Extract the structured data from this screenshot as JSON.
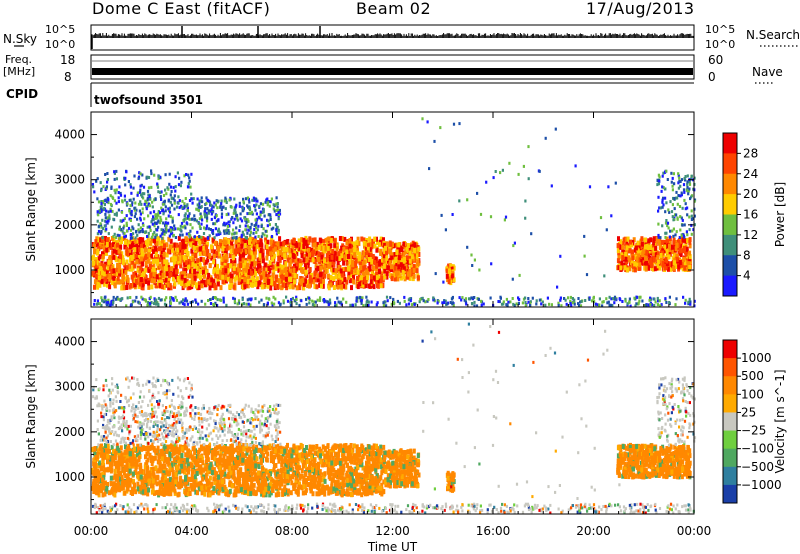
{
  "header": {
    "title": "Dome C East (fitACF)",
    "beam": "Beam 02",
    "date": "17/Aug/2013"
  },
  "status_panels": {
    "nsky_label": "N.Sky",
    "nsearch_label": "N.Search",
    "sky_ticks": [
      "10^5",
      "10^0"
    ],
    "search_ticks": [
      "10^5",
      "10^0"
    ],
    "freq_label_top": "Freq.",
    "freq_label_unit": "[MHz]",
    "freq_ticks": [
      "18",
      "8"
    ],
    "nave_label": "Nave",
    "nave_ticks": [
      "60",
      "0"
    ],
    "cpid_label": "CPID",
    "cpid_value": "twofsound 3501"
  },
  "colors": {
    "power_scale": [
      "#1a1aff",
      "#1d4fa8",
      "#3f8f7a",
      "#6fbf3f",
      "#ffcc00",
      "#ff8800",
      "#ff4400",
      "#ee0000"
    ],
    "velocity_scale": [
      "#1a3fa8",
      "#2f7f9f",
      "#4fa860",
      "#6fcf3f",
      "#c8c8c0",
      "#ffaa00",
      "#ff8800",
      "#ff5500",
      "#ee0000"
    ]
  },
  "chart_data": [
    {
      "type": "heatmap",
      "name": "power",
      "ylabel": "Slant Range [km]",
      "xlabel": "Time UT",
      "x_ticks": [
        "00:00",
        "04:00",
        "08:00",
        "12:00",
        "16:00",
        "20:00",
        "00:00"
      ],
      "x_range_hours": [
        0,
        24
      ],
      "y_ticks": [
        1000,
        2000,
        3000,
        4000
      ],
      "ylim": [
        180,
        4500
      ],
      "colorbar": {
        "label": "Power [dB]",
        "ticks": [
          4,
          8,
          12,
          16,
          20,
          24,
          28
        ]
      }
    },
    {
      "type": "heatmap",
      "name": "velocity",
      "ylabel": "Slant Range [km]",
      "xlabel": "Time UT",
      "x_ticks": [
        "00:00",
        "04:00",
        "08:00",
        "12:00",
        "16:00",
        "20:00",
        "00:00"
      ],
      "x_range_hours": [
        0,
        24
      ],
      "y_ticks": [
        1000,
        2000,
        3000,
        4000
      ],
      "ylim": [
        180,
        4500
      ],
      "colorbar": {
        "label": "Velocity [m s^-1]",
        "ticks": [
          1000,
          500,
          100,
          25,
          -25,
          -100,
          -500,
          -1000
        ]
      }
    }
  ]
}
